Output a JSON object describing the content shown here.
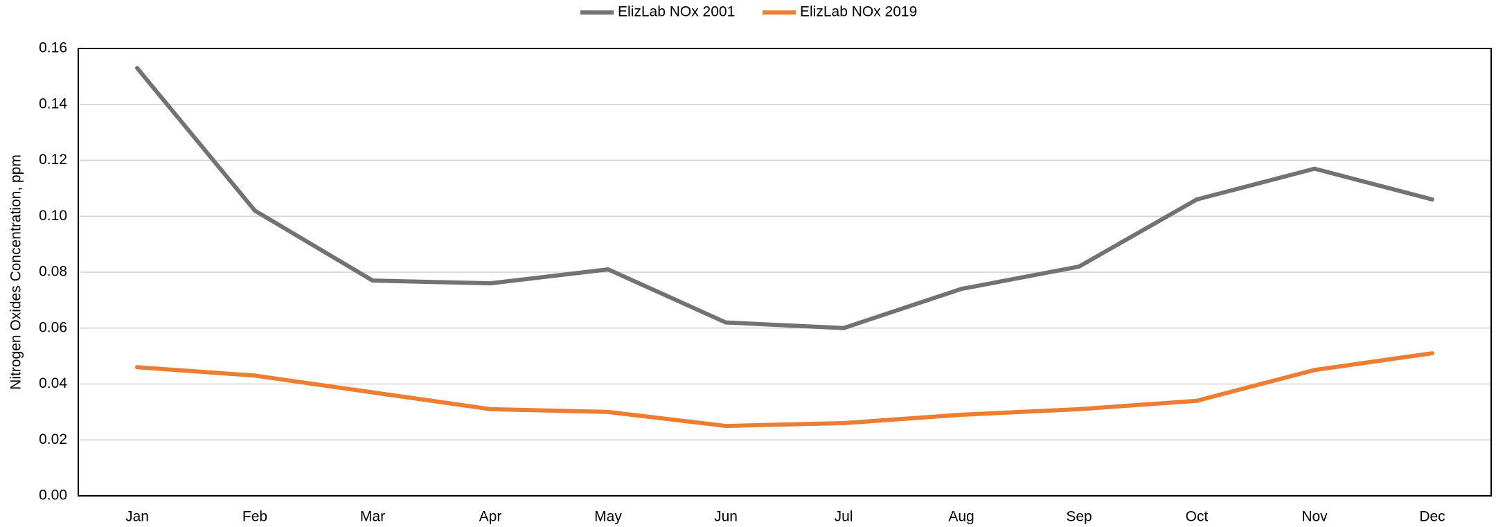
{
  "chart_data": {
    "type": "line",
    "y_label": "Nitrogen Oxides Concentration, ppm",
    "categories": [
      "Jan",
      "Feb",
      "Mar",
      "Apr",
      "May",
      "Jun",
      "Jul",
      "Aug",
      "Sep",
      "Oct",
      "Nov",
      "Dec"
    ],
    "series": [
      {
        "name": "ElizLab NOx 2001",
        "color": "#767171",
        "values": [
          0.153,
          0.102,
          0.077,
          0.076,
          0.081,
          0.062,
          0.06,
          0.074,
          0.082,
          0.106,
          0.117,
          0.106
        ]
      },
      {
        "name": "ElizLab NOx 2019",
        "color": "#ed7d31",
        "values": [
          0.046,
          0.043,
          0.037,
          0.031,
          0.03,
          0.025,
          0.026,
          0.029,
          0.031,
          0.034,
          0.045,
          0.051
        ]
      }
    ],
    "ylim": [
      0,
      0.16
    ],
    "yticks": [
      {
        "value": 0,
        "label": "0.00"
      },
      0.02,
      0.04,
      0.06,
      0.08,
      {
        "value": 0.1,
        "label": "0.10"
      },
      0.12,
      0.14,
      0.16
    ],
    "grid": true,
    "legend": "top"
  }
}
